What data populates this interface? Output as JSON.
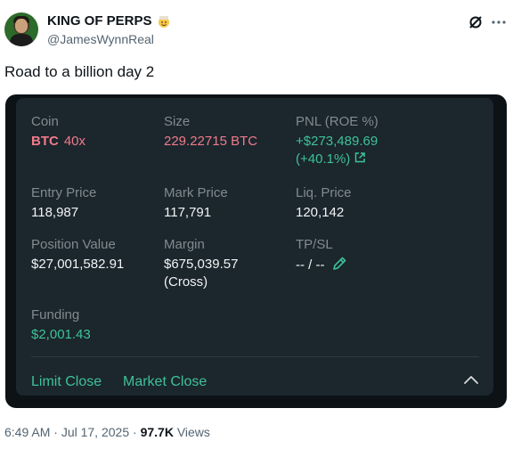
{
  "author": {
    "display_name": "KING OF PERPS",
    "handle": "@JamesWynnReal",
    "badge_icon": "emoji-face-icon"
  },
  "tweet": {
    "text": "Road to a billion day 2"
  },
  "position": {
    "coin_label": "Coin",
    "coin": "BTC",
    "leverage": "40x",
    "size_label": "Size",
    "size": "229.22715 BTC",
    "pnl_label": "PNL (ROE %)",
    "pnl": "+$273,489.69",
    "roe": "(+40.1%)",
    "entry_label": "Entry Price",
    "entry": "118,987",
    "mark_label": "Mark Price",
    "mark": "117,791",
    "liq_label": "Liq. Price",
    "liq": "120,142",
    "value_label": "Position Value",
    "value": "$27,001,582.91",
    "margin_label": "Margin",
    "margin": "$675,039.57",
    "margin_mode": "(Cross)",
    "tpsl_label": "TP/SL",
    "tpsl": "-- / --",
    "funding_label": "Funding",
    "funding": "$2,001.43",
    "limit_close": "Limit Close",
    "market_close": "Market Close"
  },
  "meta": {
    "time": "6:49 AM",
    "sep1": " · ",
    "date": "Jul 17, 2025",
    "sep2": " · ",
    "views_count": "97.7K",
    "views_label": " Views"
  },
  "colors": {
    "card_bg": "#0c1216",
    "panel_bg": "#1b262d",
    "red": "#f17b8a",
    "green": "#3ec299",
    "label_gray": "#838a8f"
  }
}
